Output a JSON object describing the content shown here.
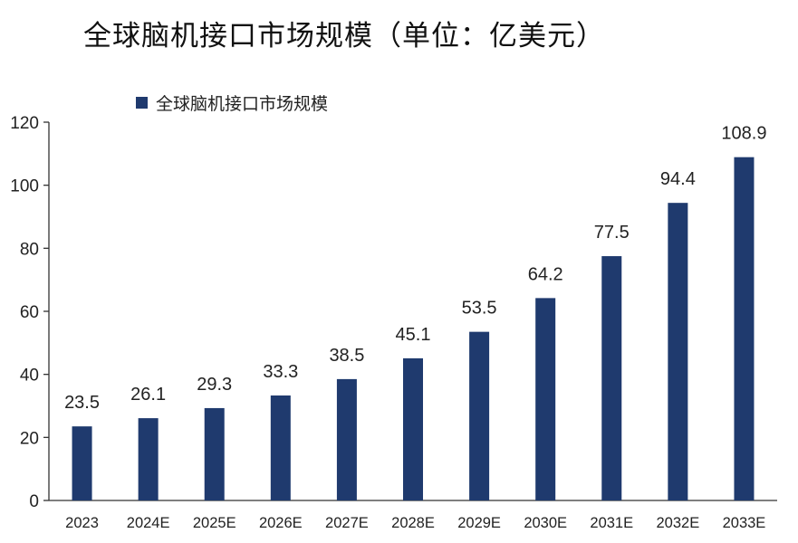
{
  "title": "全球脑机接口市场规模（单位：亿美元）",
  "legend": {
    "label": "全球脑机接口市场规模",
    "color": "#1f3a6e"
  },
  "chart_data": {
    "type": "bar",
    "title": "全球脑机接口市场规模（单位：亿美元）",
    "xlabel": "",
    "ylabel": "",
    "categories": [
      "2023",
      "2024E",
      "2025E",
      "2026E",
      "2027E",
      "2028E",
      "2029E",
      "2030E",
      "2031E",
      "2032E",
      "2033E"
    ],
    "series": [
      {
        "name": "全球脑机接口市场规模",
        "values": [
          23.5,
          26.1,
          29.3,
          33.3,
          38.5,
          45.1,
          53.5,
          64.2,
          77.5,
          94.4,
          108.9
        ],
        "labels": [
          "23.5",
          "26.1",
          "29.3",
          "33.3",
          "38.5",
          "45.1",
          "53.5",
          "64.2",
          "77.5",
          "94.4",
          "108.9"
        ],
        "color": "#1f3a6e"
      }
    ],
    "ylim": [
      0,
      120
    ],
    "yticks": [
      0,
      20,
      40,
      60,
      80,
      100,
      120
    ],
    "grid": false,
    "legend_position": "top-left",
    "data_labels": true
  }
}
